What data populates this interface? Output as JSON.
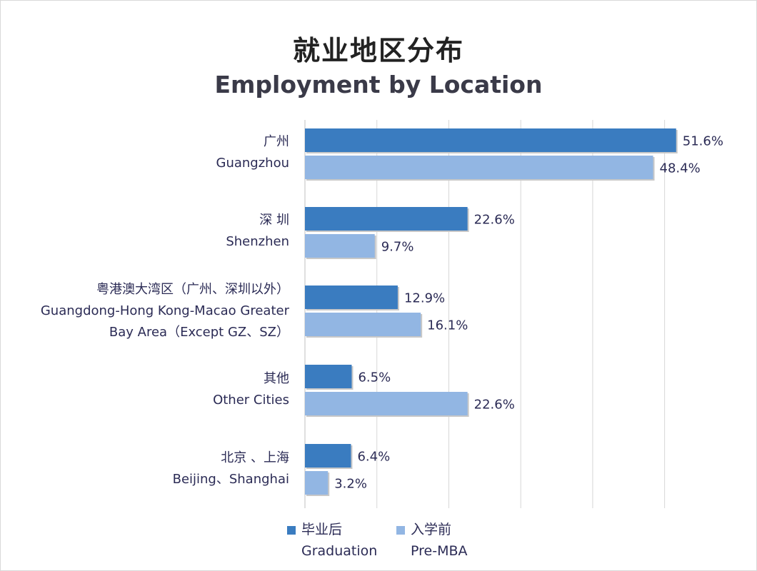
{
  "title_zh": "就业地区分布",
  "title_en": "Employment by Location",
  "chart_data": {
    "type": "bar",
    "orientation": "horizontal",
    "title": "就业地区分布 Employment by Location",
    "categories": [
      {
        "zh": "广州",
        "en": [
          "Guangzhou"
        ]
      },
      {
        "zh": "深 圳",
        "en": [
          "Shenzhen"
        ]
      },
      {
        "zh": "粤港澳大湾区（广州、深圳以外）",
        "en": [
          "Guangdong-Hong Kong-Macao Greater",
          "Bay Area（Except GZ、SZ）"
        ]
      },
      {
        "zh": "其他",
        "en": [
          "Other Cities"
        ]
      },
      {
        "zh": "北京 、上海",
        "en": [
          "Beijing、Shanghai"
        ]
      }
    ],
    "series": [
      {
        "name_zh": "毕业后",
        "name_en": "Graduation",
        "color": "#3a7cc0",
        "values": [
          51.6,
          22.6,
          12.9,
          6.5,
          6.4
        ],
        "labels": [
          "51.6%",
          "22.6%",
          "12.9%",
          "6.5%",
          "6.4%"
        ]
      },
      {
        "name_zh": "入学前",
        "name_en": "Pre-MBA",
        "color": "#92b6e3",
        "values": [
          48.4,
          9.7,
          16.1,
          22.6,
          3.2
        ],
        "labels": [
          "48.4%",
          "9.7%",
          "16.1%",
          "22.6%",
          "3.2%"
        ]
      }
    ],
    "xlim": [
      0,
      55
    ],
    "grid": true,
    "legend": "bottom"
  }
}
